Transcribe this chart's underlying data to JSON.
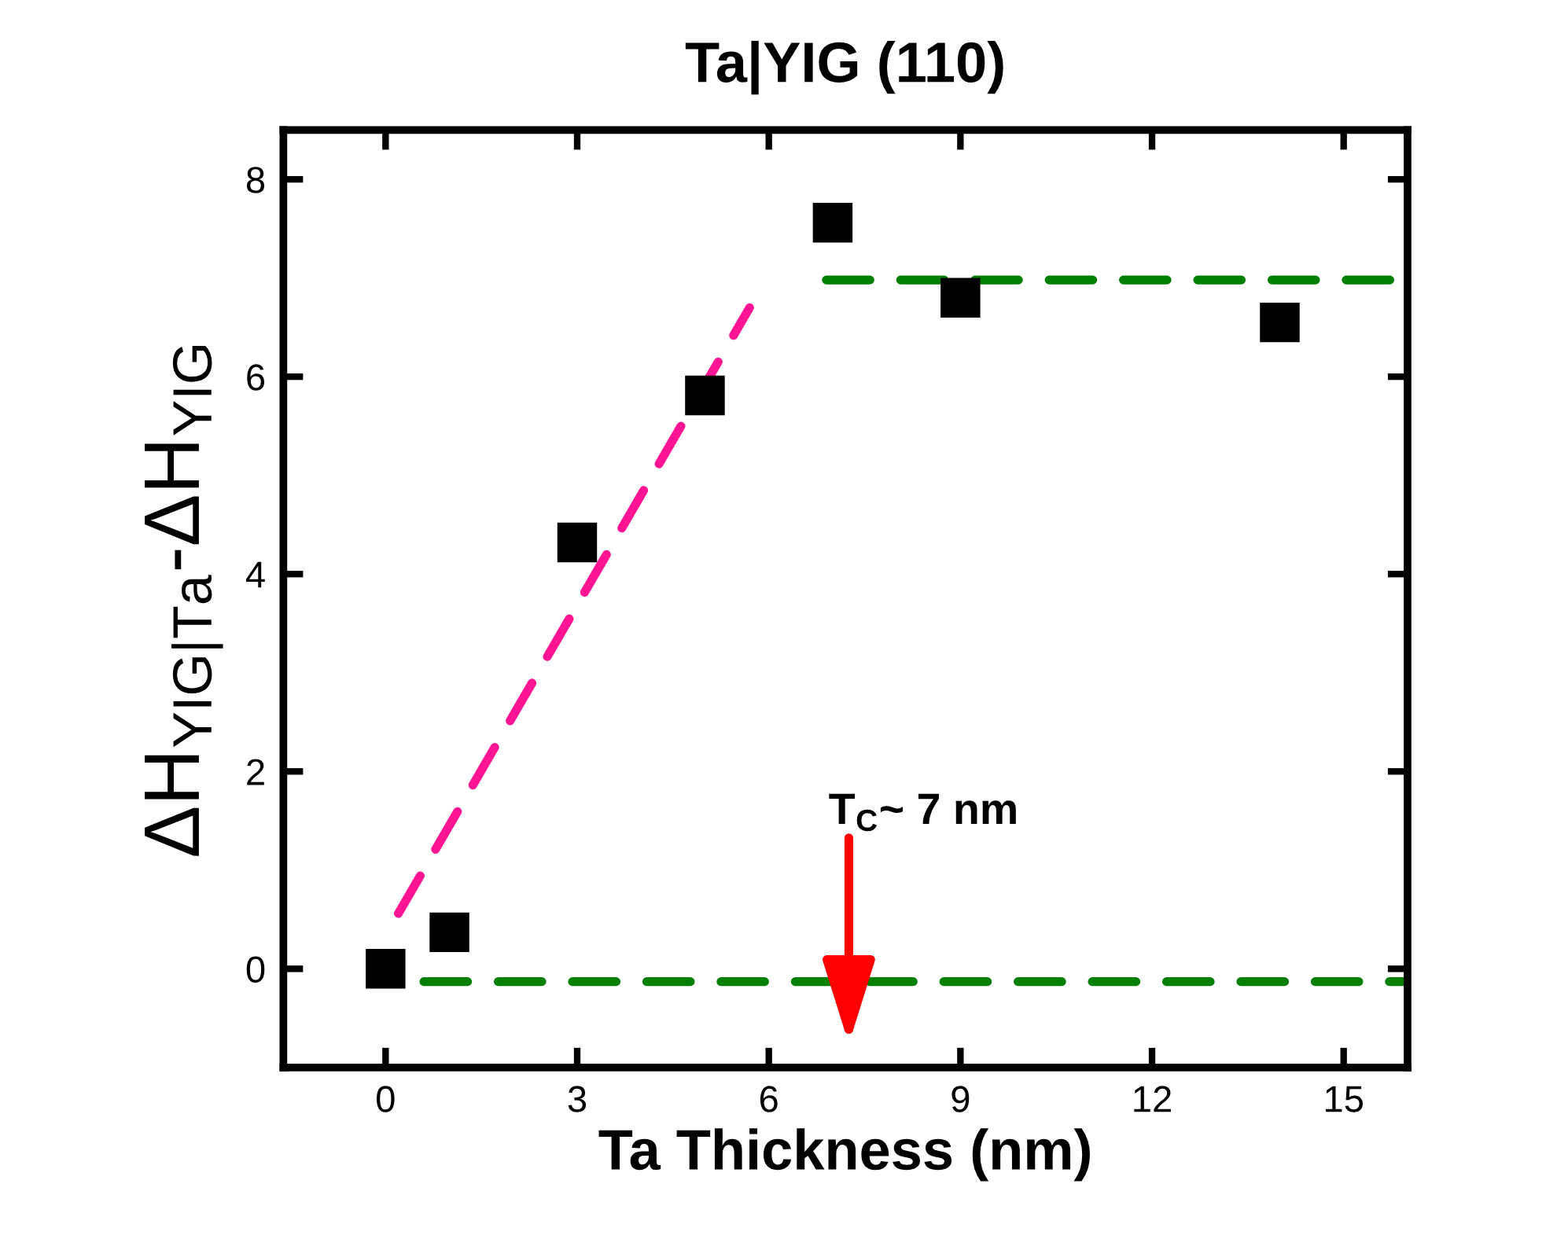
{
  "chart_data": {
    "type": "scatter",
    "title": "Ta|YIG (110)",
    "xlabel": "Ta Thickness (nm)",
    "ylabel": "ΔH$_{YIG|Ta}$-ΔH$_{YIG}$",
    "xlim": [
      -1.6,
      16
    ],
    "xticks": [
      0,
      3,
      6,
      9,
      12,
      15
    ],
    "ylim": [
      -1,
      8.5
    ],
    "yticks": [
      0,
      2,
      4,
      6,
      8
    ],
    "grid": false,
    "legend": false,
    "series": [
      {
        "color": "#000000",
        "marker": "square",
        "x": [
          0,
          1,
          3,
          5,
          7,
          9,
          14
        ],
        "values": [
          0,
          0.37,
          4.32,
          5.81,
          7.56,
          6.8,
          6.55
        ]
      },
      {
        "type": "line",
        "color": "#ff1493",
        "line_style": "dashed",
        "x": [
          0.2,
          5.7
        ],
        "values": [
          0.56,
          6.7
        ]
      },
      {
        "type": "line",
        "color": "#007f00",
        "line_style": "dashed",
        "x": [
          6.9,
          16
        ],
        "values": [
          6.98,
          6.98
        ]
      },
      {
        "type": "line",
        "color": "#007f00",
        "line_style": "dashed",
        "x": [
          0.6,
          16
        ],
        "values": [
          -0.13,
          -0.13
        ]
      }
    ],
    "annotations": [
      "T$_{C}$~ 7 nm"
    ]
  }
}
